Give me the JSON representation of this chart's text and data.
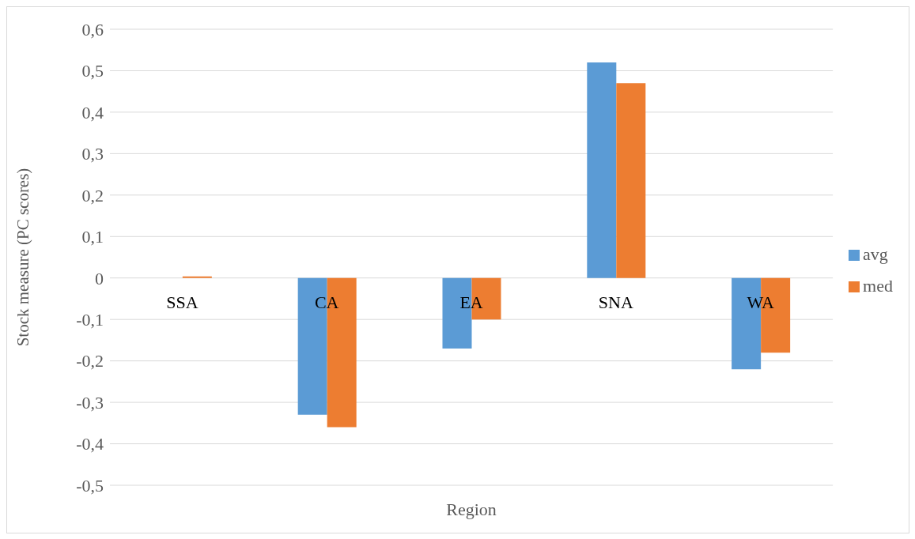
{
  "chart_data": {
    "type": "bar",
    "xlabel": "Region",
    "ylabel": "Stock measure (PC scores)",
    "categories": [
      "SSA",
      "CA",
      "EA",
      "SNA",
      "WA"
    ],
    "series": [
      {
        "name": "avg",
        "color": "#5b9bd5",
        "values": [
          0,
          -0.33,
          -0.17,
          0.52,
          -0.22
        ]
      },
      {
        "name": "med",
        "color": "#ed7d31",
        "values": [
          0.004,
          -0.36,
          -0.1,
          0.47,
          -0.18
        ]
      }
    ],
    "ylim": [
      -0.5,
      0.6
    ],
    "yticks": [
      {
        "value": -0.5,
        "label": "-0,5"
      },
      {
        "value": -0.4,
        "label": "-0,4"
      },
      {
        "value": -0.3,
        "label": "-0,3"
      },
      {
        "value": -0.2,
        "label": "-0,2"
      },
      {
        "value": -0.1,
        "label": "-0,1"
      },
      {
        "value": 0,
        "label": "0"
      },
      {
        "value": 0.1,
        "label": "0,1"
      },
      {
        "value": 0.2,
        "label": "0,2"
      },
      {
        "value": 0.3,
        "label": "0,3"
      },
      {
        "value": 0.4,
        "label": "0,4"
      },
      {
        "value": 0.5,
        "label": "0,5"
      },
      {
        "value": 0.6,
        "label": "0,6"
      }
    ],
    "grid": "y",
    "legend": "right"
  }
}
